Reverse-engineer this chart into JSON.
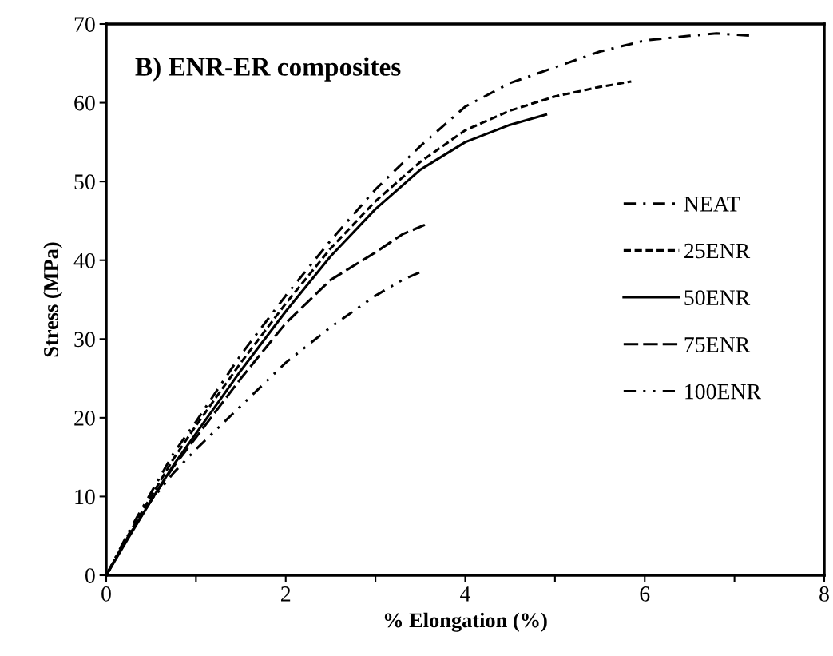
{
  "chart_data": {
    "type": "line",
    "title": "B) ENR-ER composites",
    "xlabel": "% Elongation (%)",
    "ylabel": "Stress (MPa)",
    "xlim": [
      0,
      8
    ],
    "xticks": [
      0,
      {
        "value": 1,
        "label": null
      },
      2,
      {
        "value": 3,
        "label": null
      },
      4,
      {
        "value": 5,
        "label": null
      },
      6,
      {
        "value": 7,
        "label": null
      },
      8
    ],
    "ylim": [
      0,
      70
    ],
    "yticks": [
      0,
      10,
      20,
      30,
      40,
      50,
      60,
      70
    ],
    "grid": false,
    "legend": "right",
    "marker": "none",
    "series": [
      {
        "name": "NEAT",
        "color": "#000000",
        "line_style": "dashdot",
        "x": [
          0,
          0.25,
          0.5,
          0.75,
          1,
          1.5,
          2,
          2.5,
          3,
          3.5,
          4,
          4.5,
          5,
          5.5,
          6,
          6.5,
          6.8,
          7.2
        ],
        "values": [
          0,
          5.5,
          10.5,
          15.5,
          19.5,
          28,
          35.5,
          42.5,
          49,
          54.5,
          59.5,
          62.5,
          64.5,
          66.5,
          67.9,
          68.5,
          68.8,
          68.5
        ]
      },
      {
        "name": "25ENR",
        "color": "#000000",
        "line_style": "dashed",
        "x": [
          0,
          0.25,
          0.5,
          0.75,
          1,
          1.5,
          2,
          2.5,
          3,
          3.5,
          4,
          4.5,
          5,
          5.5,
          5.85
        ],
        "values": [
          0,
          5.2,
          10,
          14.8,
          19,
          27,
          34.5,
          41.5,
          47.5,
          52.5,
          56.5,
          59,
          60.8,
          62,
          62.7
        ]
      },
      {
        "name": "50ENR",
        "color": "#000000",
        "line_style": "solid",
        "x": [
          0,
          0.25,
          0.5,
          0.75,
          1,
          1.5,
          2,
          2.5,
          3,
          3.5,
          4,
          4.5,
          4.9
        ],
        "values": [
          0,
          4.8,
          9.5,
          14,
          18,
          26,
          33.5,
          40.5,
          46.5,
          51.5,
          55,
          57.2,
          58.5
        ]
      },
      {
        "name": "75ENR",
        "color": "#000000",
        "line_style": "longdash",
        "x": [
          0,
          0.25,
          0.5,
          0.75,
          1,
          1.5,
          2,
          2.5,
          3,
          3.3,
          3.55
        ],
        "values": [
          0,
          5,
          9.5,
          13.8,
          17.5,
          25,
          32,
          37.5,
          41,
          43.3,
          44.5
        ]
      },
      {
        "name": "100ENR",
        "color": "#000000",
        "line_style": "dashdotdot",
        "x": [
          0,
          0.25,
          0.5,
          0.75,
          1,
          1.5,
          2,
          2.5,
          3,
          3.3,
          3.5
        ],
        "values": [
          0,
          5,
          9.5,
          13,
          16,
          21.5,
          27,
          31.5,
          35.5,
          37.5,
          38.5
        ]
      }
    ]
  }
}
